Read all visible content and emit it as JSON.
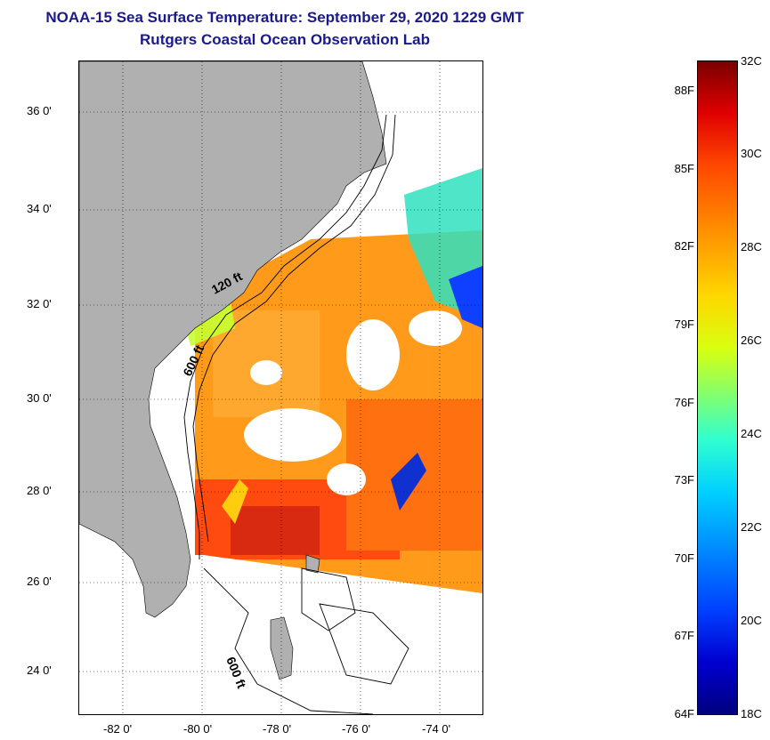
{
  "title": {
    "line1": "NOAA-15 Sea Surface Temperature:  September 29, 2020 1229 GMT",
    "line2": "Rutgers Coastal Ocean Observation Lab"
  },
  "map": {
    "lat_ticks": [
      "36 0'",
      "34 0'",
      "32 0'",
      "30 0'",
      "28 0'",
      "26 0'",
      "24 0'"
    ],
    "lon_ticks": [
      "-82 0'",
      "-80 0'",
      "-78 0'",
      "-76 0'",
      "-74 0'"
    ],
    "contour_labels": [
      "120 ft",
      "600 ft",
      "600 ft"
    ],
    "colors": {
      "land": "#b0b0b0",
      "cloud": "#ffffff"
    }
  },
  "colorbar": {
    "fahrenheit": [
      "88F",
      "85F",
      "82F",
      "79F",
      "76F",
      "73F",
      "70F",
      "67F",
      "64F"
    ],
    "celsius": [
      "32C",
      "30C",
      "28C",
      "26C",
      "24C",
      "22C",
      "20C",
      "18C"
    ]
  }
}
